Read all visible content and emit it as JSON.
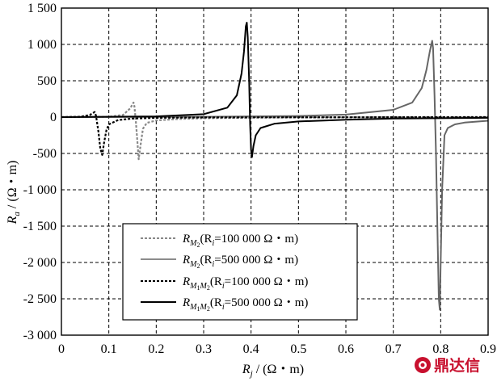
{
  "chart_data": {
    "type": "line",
    "xlabel": "R_j / (Ω・m)",
    "ylabel": "R_a / (Ω・m)",
    "xlim": [
      0,
      0.9
    ],
    "ylim": [
      -3000,
      1500
    ],
    "grid": "dashed",
    "legend_position": "bottom-left",
    "x_ticks": [
      "0",
      "0.1",
      "0.2",
      "0.3",
      "0.4",
      "0.5",
      "0.6",
      "0.7",
      "0.8",
      "0.9"
    ],
    "y_ticks": [
      "1 500",
      "1 000",
      "500",
      "0",
      "-500",
      "-1 000",
      "-1 500",
      "-2 000",
      "-2 500",
      "-3 000"
    ],
    "series": [
      {
        "name": "R_M2 (Ri=100 000 Ω・m)",
        "style": "dotted",
        "color": "#888888",
        "points": [
          [
            0,
            0
          ],
          [
            0.05,
            0
          ],
          [
            0.1,
            5
          ],
          [
            0.13,
            30
          ],
          [
            0.145,
            120
          ],
          [
            0.152,
            200
          ],
          [
            0.154,
            150
          ],
          [
            0.157,
            -60
          ],
          [
            0.16,
            -320
          ],
          [
            0.163,
            -580
          ],
          [
            0.167,
            -380
          ],
          [
            0.172,
            -160
          ],
          [
            0.18,
            -80
          ],
          [
            0.2,
            -45
          ],
          [
            0.25,
            -25
          ],
          [
            0.3,
            -15
          ],
          [
            0.4,
            -8
          ],
          [
            0.5,
            -5
          ],
          [
            0.6,
            -3
          ],
          [
            0.9,
            0
          ]
        ]
      },
      {
        "name": "R_M2 (Ri=500 000 Ω・m)",
        "style": "solid",
        "color": "#666666",
        "points": [
          [
            0,
            0
          ],
          [
            0.3,
            5
          ],
          [
            0.5,
            15
          ],
          [
            0.6,
            35
          ],
          [
            0.7,
            100
          ],
          [
            0.74,
            200
          ],
          [
            0.76,
            400
          ],
          [
            0.77,
            650
          ],
          [
            0.777,
            900
          ],
          [
            0.782,
            1050
          ],
          [
            0.784,
            950
          ],
          [
            0.787,
            300
          ],
          [
            0.79,
            -500
          ],
          [
            0.793,
            -1500
          ],
          [
            0.796,
            -2500
          ],
          [
            0.798,
            -2650
          ],
          [
            0.8,
            -2000
          ],
          [
            0.803,
            -1000
          ],
          [
            0.808,
            -250
          ],
          [
            0.815,
            -150
          ],
          [
            0.83,
            -100
          ],
          [
            0.85,
            -75
          ],
          [
            0.9,
            -50
          ]
        ]
      },
      {
        "name": "R_M1M2 (Ri=100 000 Ω・m)",
        "style": "dotted",
        "color": "#000000",
        "points": [
          [
            0,
            0
          ],
          [
            0.04,
            5
          ],
          [
            0.06,
            30
          ],
          [
            0.07,
            70
          ],
          [
            0.073,
            20
          ],
          [
            0.078,
            -200
          ],
          [
            0.082,
            -430
          ],
          [
            0.086,
            -520
          ],
          [
            0.09,
            -350
          ],
          [
            0.095,
            -180
          ],
          [
            0.1,
            -100
          ],
          [
            0.12,
            -40
          ],
          [
            0.15,
            -20
          ],
          [
            0.2,
            -10
          ],
          [
            0.3,
            -5
          ],
          [
            0.9,
            0
          ]
        ]
      },
      {
        "name": "R_M1M2 (Ri=500 000 Ω・m)",
        "style": "solid",
        "color": "#000000",
        "points": [
          [
            0,
            0
          ],
          [
            0.2,
            10
          ],
          [
            0.3,
            40
          ],
          [
            0.35,
            130
          ],
          [
            0.37,
            300
          ],
          [
            0.38,
            600
          ],
          [
            0.385,
            900
          ],
          [
            0.389,
            1250
          ],
          [
            0.391,
            1300
          ],
          [
            0.393,
            1100
          ],
          [
            0.396,
            500
          ],
          [
            0.398,
            -100
          ],
          [
            0.4,
            -450
          ],
          [
            0.402,
            -550
          ],
          [
            0.405,
            -400
          ],
          [
            0.41,
            -250
          ],
          [
            0.42,
            -150
          ],
          [
            0.45,
            -90
          ],
          [
            0.5,
            -60
          ],
          [
            0.6,
            -35
          ],
          [
            0.7,
            -20
          ],
          [
            0.9,
            -10
          ]
        ]
      }
    ]
  },
  "legend": {
    "items": [
      {
        "label": "R",
        "sub": "M",
        "subsub": "2",
        "ri": "i",
        "paren": "(R",
        "rest": "=100 000 Ω・m)"
      },
      {
        "label": "R",
        "sub": "M",
        "subsub": "2",
        "ri": "i",
        "paren": "(R",
        "rest": "=500 000 Ω・m)"
      },
      {
        "label": "R",
        "sub": "M",
        "subsub": "1",
        "sub2": "M",
        "subsub2": "2",
        "ri": "i",
        "paren": "(R",
        "rest": "=100 000 Ω・m)"
      },
      {
        "label": "R",
        "sub": "M",
        "subsub": "1",
        "sub2": "M",
        "subsub2": "2",
        "ri": "i",
        "paren": "(R",
        "rest": "=500 000 Ω・m)"
      }
    ]
  },
  "axes": {
    "x_label_main": "R",
    "x_label_sub": "j",
    "x_label_unit": " / (Ω・m)",
    "y_label_main": "R",
    "y_label_sub": "a",
    "y_label_unit": " / (Ω・m)"
  },
  "watermark": {
    "text": "鼎达信"
  }
}
